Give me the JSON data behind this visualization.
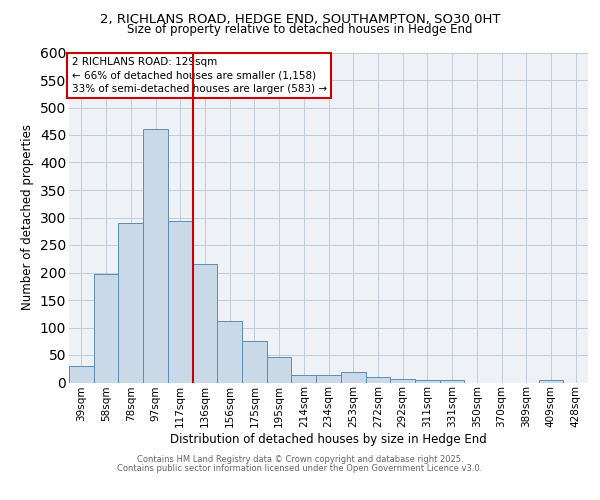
{
  "title_line1": "2, RICHLANS ROAD, HEDGE END, SOUTHAMPTON, SO30 0HT",
  "title_line2": "Size of property relative to detached houses in Hedge End",
  "xlabel": "Distribution of detached houses by size in Hedge End",
  "ylabel": "Number of detached properties",
  "bar_labels": [
    "39sqm",
    "58sqm",
    "78sqm",
    "97sqm",
    "117sqm",
    "136sqm",
    "156sqm",
    "175sqm",
    "195sqm",
    "214sqm",
    "234sqm",
    "253sqm",
    "272sqm",
    "292sqm",
    "311sqm",
    "331sqm",
    "350sqm",
    "370sqm",
    "389sqm",
    "409sqm",
    "428sqm"
  ],
  "bar_values": [
    30,
    197,
    290,
    460,
    293,
    215,
    111,
    75,
    46,
    14,
    14,
    20,
    10,
    7,
    5,
    5,
    0,
    0,
    0,
    4,
    0
  ],
  "bar_color": "#c9d9e8",
  "bar_edge_color": "#5b8db8",
  "grid_color": "#c0ccda",
  "background_color": "#eef2f7",
  "vline_x": 4.5,
  "vline_color": "#cc0000",
  "annotation_text": "2 RICHLANS ROAD: 129sqm\n← 66% of detached houses are smaller (1,158)\n33% of semi-detached houses are larger (583) →",
  "annotation_box_color": "#cc0000",
  "annotation_text_color": "#000000",
  "ylim": [
    0,
    600
  ],
  "yticks": [
    0,
    50,
    100,
    150,
    200,
    250,
    300,
    350,
    400,
    450,
    500,
    550,
    600
  ],
  "footer_line1": "Contains HM Land Registry data © Crown copyright and database right 2025.",
  "footer_line2": "Contains public sector information licensed under the Open Government Licence v3.0.",
  "title1_fontsize": 9.5,
  "title2_fontsize": 8.5
}
